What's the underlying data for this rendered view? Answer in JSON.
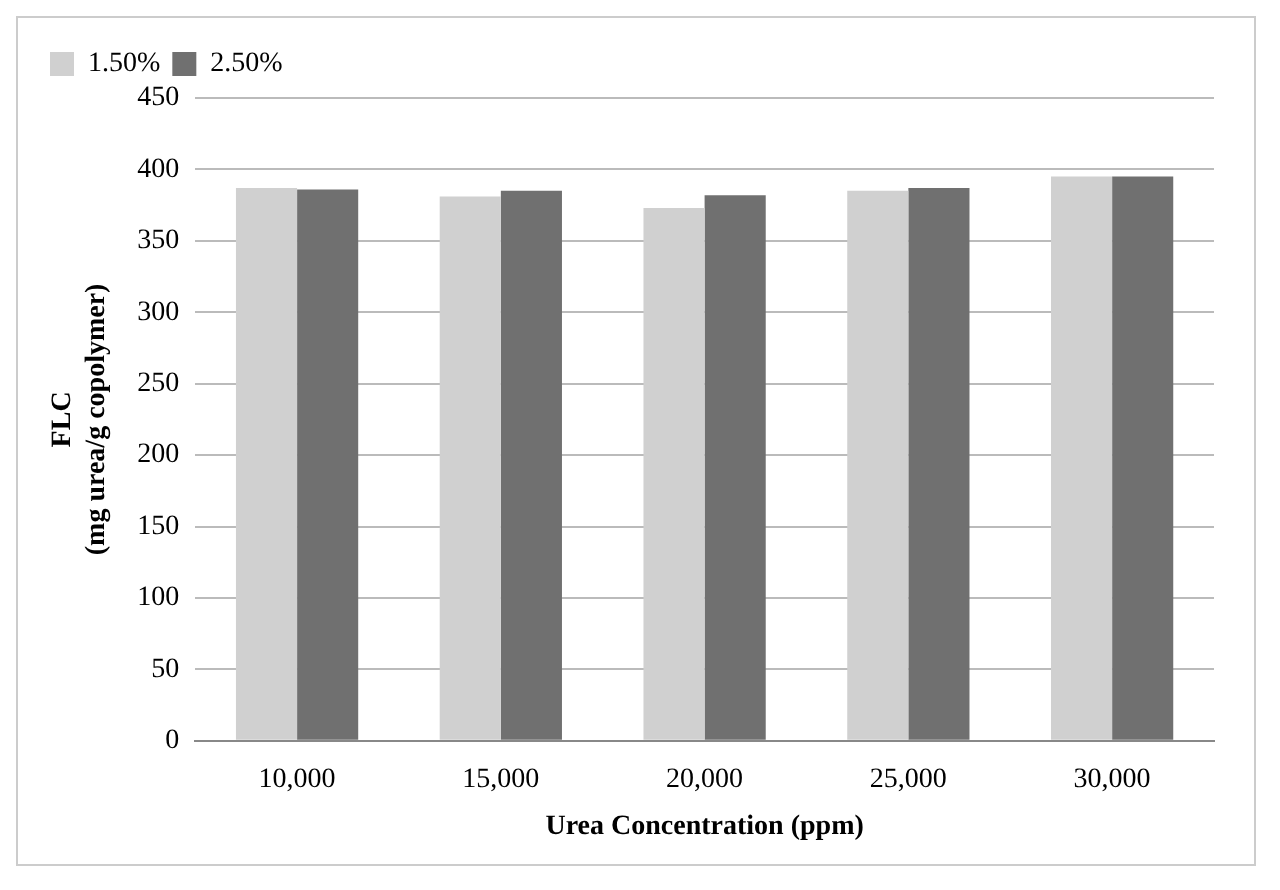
{
  "chart_data": {
    "type": "bar",
    "xlabel": "Urea Concentration (ppm)",
    "ylabel": "FLC\n(mg urea/g copolymer)",
    "categories": [
      "10,000",
      "15,000",
      "20,000",
      "25,000",
      "30,000"
    ],
    "series": [
      {
        "name": "1.50%",
        "color": "#d0d0d0",
        "values": [
          387,
          381,
          373,
          385,
          395
        ]
      },
      {
        "name": "2.50%",
        "color": "#707070",
        "values": [
          386,
          385,
          382,
          387,
          395
        ]
      }
    ],
    "ylim": [
      0,
      450
    ],
    "yticks": [
      0,
      50,
      100,
      150,
      200,
      250,
      300,
      350,
      400,
      450
    ],
    "grid": "y",
    "legend": "top left"
  }
}
